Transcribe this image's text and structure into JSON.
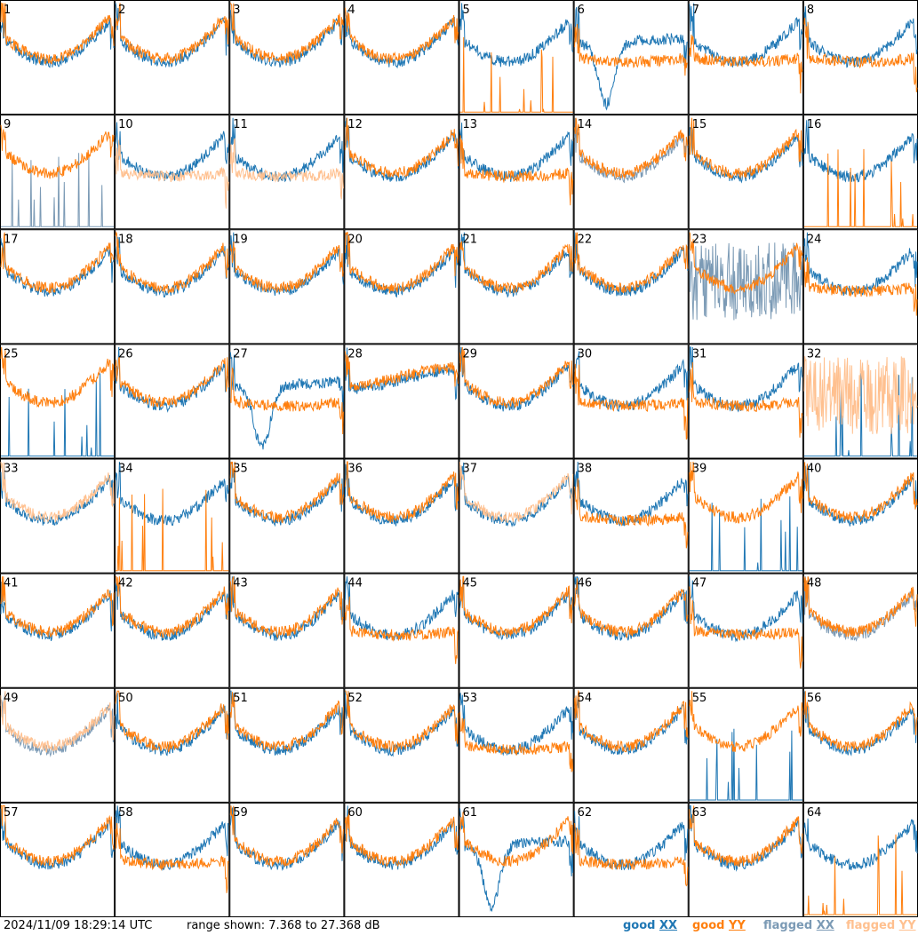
{
  "footer": {
    "timestamp": "2024/11/09 18:29:14 UTC",
    "range_text": "range shown: 7.368 to 27.368 dB"
  },
  "legend": [
    {
      "key": "good_xx",
      "word": "good",
      "pol": "XX",
      "color": "#1f77b4"
    },
    {
      "key": "good_yy",
      "word": "good",
      "pol": "YY",
      "color": "#ff7f0e"
    },
    {
      "key": "flagged_xx",
      "word": "flagged",
      "pol": "XX",
      "color": "#7b9ab5"
    },
    {
      "key": "flagged_yy",
      "word": "flagged",
      "pol": "YY",
      "color": "#ffc08f"
    }
  ],
  "chart_data": {
    "type": "line",
    "title": "",
    "xlabel": "",
    "ylabel": "",
    "ylim": [
      7.368,
      27.368
    ],
    "grid": false,
    "rows": 8,
    "cols": 8,
    "panels": [
      {
        "id": "1",
        "xx": "good",
        "yy": "good",
        "xxStyle": "bowl",
        "yyStyle": "bowl"
      },
      {
        "id": "2",
        "xx": "good",
        "yy": "good",
        "xxStyle": "bowl",
        "yyStyle": "bowl"
      },
      {
        "id": "3",
        "xx": "good",
        "yy": "good",
        "xxStyle": "bowl",
        "yyStyle": "bowl"
      },
      {
        "id": "4",
        "xx": "good",
        "yy": "good",
        "xxStyle": "bowl",
        "yyStyle": "bowl"
      },
      {
        "id": "5",
        "xx": "good",
        "yy": "good",
        "xxStyle": "bowl",
        "yyStyle": "spikes"
      },
      {
        "id": "6",
        "xx": "good",
        "yy": "good",
        "xxStyle": "dip",
        "yyStyle": "flat"
      },
      {
        "id": "7",
        "xx": "good",
        "yy": "good",
        "xxStyle": "bowl",
        "yyStyle": "flat"
      },
      {
        "id": "8",
        "xx": "good",
        "yy": "good",
        "xxStyle": "bowl",
        "yyStyle": "flat"
      },
      {
        "id": "9",
        "xx": "flagged",
        "yy": "good",
        "xxStyle": "spikes",
        "yyStyle": "bowl"
      },
      {
        "id": "10",
        "xx": "good",
        "yy": "flagged",
        "xxStyle": "bowl",
        "yyStyle": "flat"
      },
      {
        "id": "11",
        "xx": "good",
        "yy": "flagged",
        "xxStyle": "bowl",
        "yyStyle": "flat"
      },
      {
        "id": "12",
        "xx": "good",
        "yy": "good",
        "xxStyle": "bowl",
        "yyStyle": "bowl"
      },
      {
        "id": "13",
        "xx": "good",
        "yy": "good",
        "xxStyle": "bowl",
        "yyStyle": "flat"
      },
      {
        "id": "14",
        "xx": "flagged",
        "yy": "good",
        "xxStyle": "bowl",
        "yyStyle": "bowl"
      },
      {
        "id": "15",
        "xx": "good",
        "yy": "good",
        "xxStyle": "bowl",
        "yyStyle": "bowl"
      },
      {
        "id": "16",
        "xx": "good",
        "yy": "good",
        "xxStyle": "bowl",
        "yyStyle": "spikes"
      },
      {
        "id": "17",
        "xx": "good",
        "yy": "good",
        "xxStyle": "bowl",
        "yyStyle": "bowl"
      },
      {
        "id": "18",
        "xx": "good",
        "yy": "good",
        "xxStyle": "bowl",
        "yyStyle": "bowl"
      },
      {
        "id": "19",
        "xx": "good",
        "yy": "good",
        "xxStyle": "bowl",
        "yyStyle": "bowl"
      },
      {
        "id": "20",
        "xx": "good",
        "yy": "good",
        "xxStyle": "bowl",
        "yyStyle": "bowl"
      },
      {
        "id": "21",
        "xx": "good",
        "yy": "good",
        "xxStyle": "bowl",
        "yyStyle": "bowl"
      },
      {
        "id": "22",
        "xx": "good",
        "yy": "good",
        "xxStyle": "bowl",
        "yyStyle": "bowl"
      },
      {
        "id": "23",
        "xx": "flagged",
        "yy": "good",
        "xxStyle": "noise",
        "yyStyle": "bowl"
      },
      {
        "id": "24",
        "xx": "good",
        "yy": "good",
        "xxStyle": "bowl",
        "yyStyle": "flat"
      },
      {
        "id": "25",
        "xx": "good",
        "yy": "good",
        "xxStyle": "spikes",
        "yyStyle": "bowl"
      },
      {
        "id": "26",
        "xx": "good",
        "yy": "good",
        "xxStyle": "bowl",
        "yyStyle": "bowl"
      },
      {
        "id": "27",
        "xx": "good",
        "yy": "good",
        "xxStyle": "dip",
        "yyStyle": "flat"
      },
      {
        "id": "28",
        "xx": "good",
        "yy": "good",
        "xxStyle": "smooth",
        "yyStyle": "smooth"
      },
      {
        "id": "29",
        "xx": "good",
        "yy": "good",
        "xxStyle": "bowl",
        "yyStyle": "bowl"
      },
      {
        "id": "30",
        "xx": "good",
        "yy": "good",
        "xxStyle": "bowl",
        "yyStyle": "flat"
      },
      {
        "id": "31",
        "xx": "good",
        "yy": "good",
        "xxStyle": "bowl",
        "yyStyle": "flat"
      },
      {
        "id": "32",
        "xx": "good",
        "yy": "flagged",
        "xxStyle": "spikes",
        "yyStyle": "noise"
      },
      {
        "id": "33",
        "xx": "good",
        "yy": "flagged",
        "xxStyle": "bowl",
        "yyStyle": "bowl"
      },
      {
        "id": "34",
        "xx": "good",
        "yy": "good",
        "xxStyle": "bowl",
        "yyStyle": "spikes"
      },
      {
        "id": "35",
        "xx": "good",
        "yy": "good",
        "xxStyle": "bowl",
        "yyStyle": "bowl"
      },
      {
        "id": "36",
        "xx": "good",
        "yy": "good",
        "xxStyle": "bowl",
        "yyStyle": "bowl"
      },
      {
        "id": "37",
        "xx": "good",
        "yy": "flagged",
        "xxStyle": "bowl",
        "yyStyle": "bowl"
      },
      {
        "id": "38",
        "xx": "good",
        "yy": "good",
        "xxStyle": "bowl",
        "yyStyle": "flat"
      },
      {
        "id": "39",
        "xx": "good",
        "yy": "good",
        "xxStyle": "spikes",
        "yyStyle": "bowl"
      },
      {
        "id": "40",
        "xx": "good",
        "yy": "good",
        "xxStyle": "bowl",
        "yyStyle": "bowl"
      },
      {
        "id": "41",
        "xx": "good",
        "yy": "good",
        "xxStyle": "bowl",
        "yyStyle": "bowl"
      },
      {
        "id": "42",
        "xx": "good",
        "yy": "good",
        "xxStyle": "bowl",
        "yyStyle": "bowl"
      },
      {
        "id": "43",
        "xx": "good",
        "yy": "good",
        "xxStyle": "bowl",
        "yyStyle": "bowl"
      },
      {
        "id": "44",
        "xx": "good",
        "yy": "good",
        "xxStyle": "bowl",
        "yyStyle": "flat"
      },
      {
        "id": "45",
        "xx": "good",
        "yy": "good",
        "xxStyle": "bowl",
        "yyStyle": "bowl"
      },
      {
        "id": "46",
        "xx": "good",
        "yy": "good",
        "xxStyle": "bowl",
        "yyStyle": "bowl"
      },
      {
        "id": "47",
        "xx": "good",
        "yy": "good",
        "xxStyle": "bowl",
        "yyStyle": "flat"
      },
      {
        "id": "48",
        "xx": "flagged",
        "yy": "good",
        "xxStyle": "bowl",
        "yyStyle": "bowl"
      },
      {
        "id": "49",
        "xx": "flagged",
        "yy": "flagged",
        "xxStyle": "bowl",
        "yyStyle": "bowl"
      },
      {
        "id": "50",
        "xx": "good",
        "yy": "good",
        "xxStyle": "bowl",
        "yyStyle": "bowl"
      },
      {
        "id": "51",
        "xx": "good",
        "yy": "good",
        "xxStyle": "bowl",
        "yyStyle": "bowl"
      },
      {
        "id": "52",
        "xx": "good",
        "yy": "good",
        "xxStyle": "bowl",
        "yyStyle": "bowl"
      },
      {
        "id": "53",
        "xx": "good",
        "yy": "good",
        "xxStyle": "bowl",
        "yyStyle": "flat"
      },
      {
        "id": "54",
        "xx": "good",
        "yy": "good",
        "xxStyle": "bowl",
        "yyStyle": "bowl"
      },
      {
        "id": "55",
        "xx": "good",
        "yy": "good",
        "xxStyle": "spikes",
        "yyStyle": "bowl"
      },
      {
        "id": "56",
        "xx": "good",
        "yy": "good",
        "xxStyle": "bowl",
        "yyStyle": "bowl"
      },
      {
        "id": "57",
        "xx": "good",
        "yy": "good",
        "xxStyle": "bowl",
        "yyStyle": "bowl"
      },
      {
        "id": "58",
        "xx": "good",
        "yy": "good",
        "xxStyle": "bowl",
        "yyStyle": "flat"
      },
      {
        "id": "59",
        "xx": "good",
        "yy": "good",
        "xxStyle": "bowl",
        "yyStyle": "bowl"
      },
      {
        "id": "60",
        "xx": "good",
        "yy": "good",
        "xxStyle": "bowl",
        "yyStyle": "bowl"
      },
      {
        "id": "61",
        "xx": "good",
        "yy": "good",
        "xxStyle": "dip",
        "yyStyle": "bowl"
      },
      {
        "id": "62",
        "xx": "good",
        "yy": "good",
        "xxStyle": "bowl",
        "yyStyle": "flat"
      },
      {
        "id": "63",
        "xx": "good",
        "yy": "good",
        "xxStyle": "bowl",
        "yyStyle": "bowl"
      },
      {
        "id": "64",
        "xx": "good",
        "yy": "good",
        "xxStyle": "bowl",
        "yyStyle": "spikes"
      }
    ]
  }
}
